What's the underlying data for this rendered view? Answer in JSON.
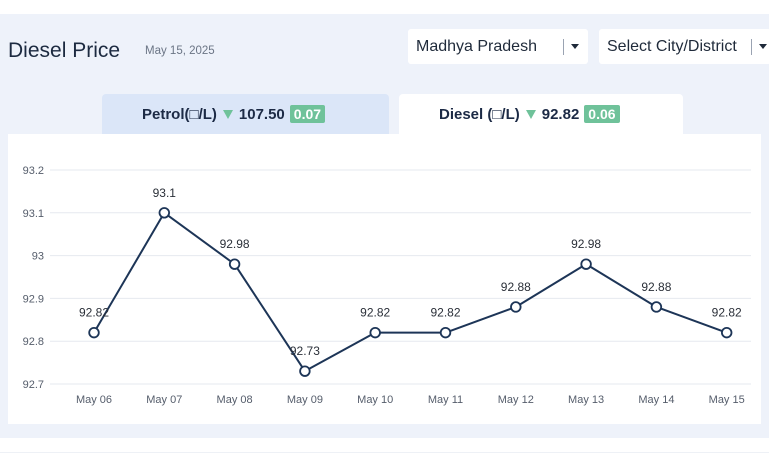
{
  "header": {
    "title": "Diesel Price",
    "date": "May 15, 2025"
  },
  "filters": {
    "state": "Madhya Pradesh",
    "city_placeholder": "Select City/District"
  },
  "tabs": [
    {
      "name": "Petrol(□/L)",
      "price": "107.50",
      "change": "0.07",
      "direction": "down",
      "active": false
    },
    {
      "name": "Diesel (□/L)",
      "price": "92.82",
      "change": "0.06",
      "direction": "down",
      "active": true
    }
  ],
  "colors": {
    "line": "#1d3557",
    "down_indicator": "#6fc29a",
    "active_tab": "#ffffff",
    "inactive_tab": "#dbe6f8"
  },
  "icons": {
    "dropdown": "chevron-down-icon",
    "change": "triangle-down-icon"
  },
  "chart_data": {
    "type": "line",
    "categories": [
      "May 06",
      "May 07",
      "May 08",
      "May 09",
      "May 10",
      "May 11",
      "May 12",
      "May 13",
      "May 14",
      "May 15"
    ],
    "series": [
      {
        "values": [
          92.82,
          93.1,
          92.98,
          92.73,
          92.82,
          92.82,
          92.88,
          92.98,
          92.88,
          92.82
        ]
      }
    ],
    "data_labels": [
      "92.82",
      "93.1",
      "92.98",
      "92.73",
      "92.82",
      "92.82",
      "92.88",
      "92.98",
      "92.88",
      "92.82"
    ],
    "y_ticks": [
      "92.7",
      "92.8",
      "92.9",
      "93",
      "93.1",
      "93.2"
    ],
    "ylim": [
      92.7,
      93.2
    ],
    "grid": true,
    "legend": "none",
    "title": "",
    "xlabel": "",
    "ylabel": ""
  }
}
